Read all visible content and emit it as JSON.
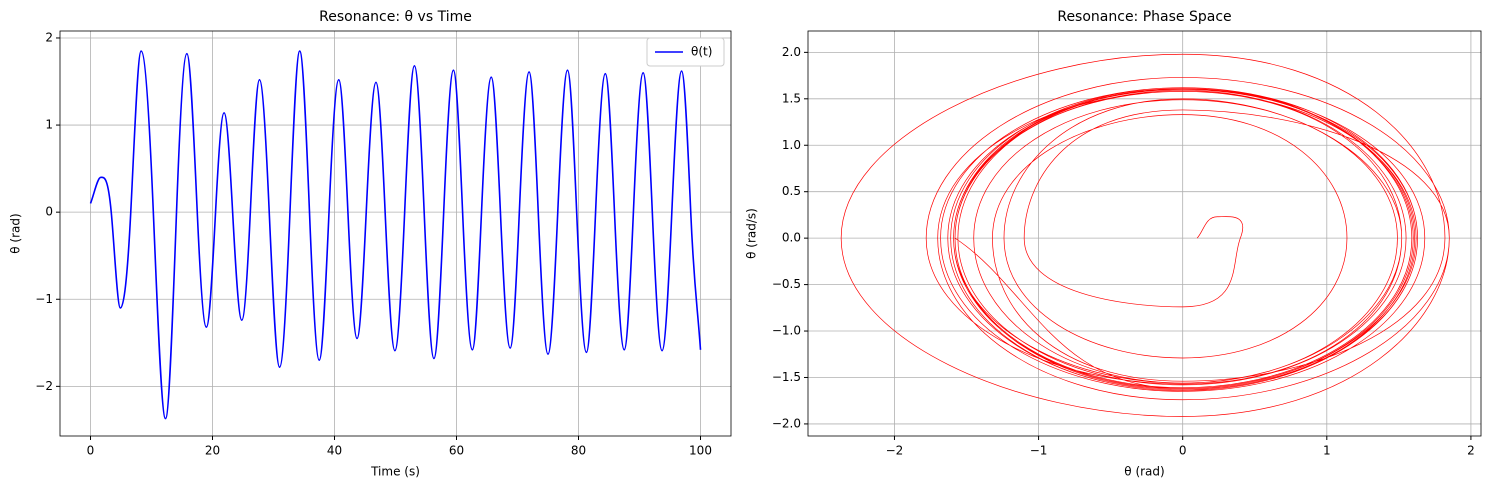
{
  "chart_data": [
    {
      "type": "line",
      "title": "Resonance: θ vs Time",
      "xlabel": "Time (s)",
      "ylabel": "θ (rad)",
      "x": [
        0,
        1.7,
        3.4,
        4.9,
        6.6,
        8.3,
        10.3,
        12.3,
        14.1,
        15.8,
        17.5,
        19.0,
        20.5,
        21.9,
        23.3,
        24.8,
        26.2,
        27.7,
        29.3,
        31.0,
        32.7,
        34.3,
        35.9,
        37.5,
        39.1,
        40.7,
        42.2,
        43.7,
        45.2,
        46.8,
        48.3,
        49.9,
        51.5,
        53.1,
        54.7,
        56.3,
        57.9,
        59.5,
        61.0,
        62.6,
        64.1,
        65.7,
        67.2,
        68.8,
        70.3,
        71.9,
        73.4,
        75.0,
        76.6,
        78.2,
        79.7,
        81.3,
        82.8,
        84.4,
        85.9,
        87.5,
        89.0,
        90.6,
        92.1,
        93.7,
        95.3,
        96.9,
        98.4,
        100
      ],
      "series": [
        {
          "name": "θ(t)",
          "color": "#0000ff",
          "values": [
            0.1,
            0.4,
            0,
            -1.1,
            0,
            1.85,
            0,
            -2.37,
            0,
            1.82,
            0,
            -1.32,
            0,
            1.14,
            0,
            -1.24,
            0,
            1.52,
            0,
            -1.78,
            0,
            1.85,
            0,
            -1.7,
            0,
            1.52,
            0,
            -1.45,
            0,
            1.49,
            0,
            -1.59,
            0,
            1.68,
            0,
            -1.68,
            0,
            1.63,
            0,
            -1.58,
            0,
            1.55,
            0,
            -1.56,
            0,
            1.61,
            0,
            -1.63,
            0,
            1.63,
            0,
            -1.61,
            0,
            1.59,
            0,
            -1.58,
            0,
            1.6,
            0,
            -1.59,
            0,
            1.62,
            0,
            -1.58
          ]
        }
      ],
      "xlim": [
        -5,
        105
      ],
      "ylim": [
        -2.57,
        2.08
      ],
      "xticks": [
        0,
        20,
        40,
        60,
        80,
        100
      ],
      "yticks": [
        {
          "value": -2,
          "label": "−2"
        },
        {
          "value": -1,
          "label": "−1"
        },
        0,
        1,
        2
      ],
      "grid": true,
      "legend": "upper right"
    },
    {
      "type": "line",
      "title": "Resonance: Phase Space",
      "xlabel": "θ (rad)",
      "ylabel": "θ (rad/s)",
      "x": [
        0.1,
        0.24,
        0.4,
        0,
        -1.1,
        0,
        1.85,
        0,
        -2.37,
        0,
        1.82,
        0,
        -1.32,
        0,
        1.14,
        0,
        -1.24,
        0,
        1.52,
        0,
        -1.78,
        0,
        1.85,
        0,
        -1.7,
        0,
        1.52,
        0,
        -1.45,
        0,
        1.49,
        0,
        -1.59,
        0,
        1.68,
        0,
        -1.68,
        0,
        1.63,
        0,
        -1.58,
        0,
        1.55,
        0,
        -1.56,
        0,
        1.61,
        0,
        -1.63,
        0,
        1.63,
        0,
        -1.61,
        0,
        1.59,
        0,
        -1.58,
        0,
        1.6,
        0,
        -1.59,
        0,
        1.62,
        0,
        -1.58
      ],
      "series": [
        {
          "color": "#ff0000",
          "values": [
            0,
            0.23,
            0,
            -0.74,
            0,
            1.38,
            0,
            -1.92,
            0,
            1.98,
            0,
            -1.54,
            0,
            1.33,
            0,
            -1.29,
            0,
            1.5,
            0,
            -1.57,
            0,
            1.73,
            0,
            -1.74,
            0,
            1.58,
            0,
            -1.56,
            0,
            1.49,
            0,
            -1.56,
            0,
            1.61,
            0,
            -1.65,
            0,
            1.62,
            0,
            -1.63,
            0,
            1.59,
            0,
            -1.58,
            0,
            1.61,
            0,
            -1.64,
            0,
            1.6,
            0,
            -1.64,
            0,
            1.62,
            0,
            -1.61,
            0,
            1.61,
            0,
            -1.62,
            0,
            1.58,
            0,
            -1.62,
            0
          ]
        }
      ],
      "xlim": [
        -2.6,
        2.07
      ],
      "ylim": [
        -2.13,
        2.23
      ],
      "xticks": [
        {
          "value": -2,
          "label": "−2"
        },
        {
          "value": -1,
          "label": "−1"
        },
        0,
        1,
        2
      ],
      "yticks": [
        {
          "value": -2,
          "label": "−2.0"
        },
        {
          "value": -1.5,
          "label": "−1.5"
        },
        {
          "value": -1,
          "label": "−1.0"
        },
        {
          "value": -0.5,
          "label": "−0.5"
        },
        {
          "value": 0,
          "label": "0.0"
        },
        0.5,
        {
          "value": 1,
          "label": "1.0"
        },
        1.5,
        {
          "value": 2,
          "label": "2.0"
        }
      ],
      "grid": true
    }
  ]
}
